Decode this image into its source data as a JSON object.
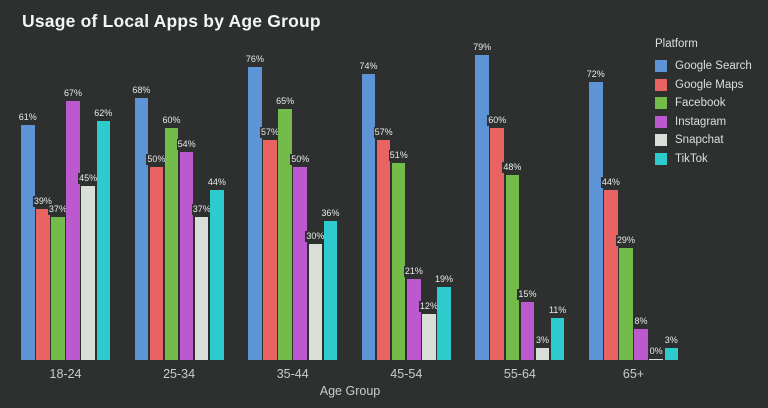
{
  "background": "#2d302f",
  "chart_data": {
    "type": "bar",
    "title": "Usage of Local Apps by Age Group",
    "xlabel": "Age Group",
    "ylabel": "",
    "ylim": [
      0,
      80
    ],
    "grid": false,
    "legend_title": "Platform",
    "legend_position": "right",
    "value_suffix": "%",
    "categories": [
      "18-24",
      "25-34",
      "35-44",
      "45-54",
      "55-64",
      "65+"
    ],
    "series": [
      {
        "name": "Google Search",
        "color": "#5d94d6",
        "values": [
          61,
          68,
          76,
          74,
          79,
          72
        ]
      },
      {
        "name": "Google Maps",
        "color": "#ea6363",
        "values": [
          39,
          50,
          57,
          57,
          60,
          44
        ]
      },
      {
        "name": "Facebook",
        "color": "#73bb4a",
        "values": [
          37,
          60,
          65,
          51,
          48,
          29
        ]
      },
      {
        "name": "Instagram",
        "color": "#bc59ce",
        "values": [
          67,
          54,
          50,
          21,
          15,
          8
        ]
      },
      {
        "name": "Snapchat",
        "color": "#d7dfd8",
        "values": [
          45,
          37,
          30,
          12,
          3,
          0
        ]
      },
      {
        "name": "TikTok",
        "color": "#2dcbcb",
        "values": [
          62,
          44,
          36,
          19,
          11,
          3
        ]
      }
    ]
  }
}
